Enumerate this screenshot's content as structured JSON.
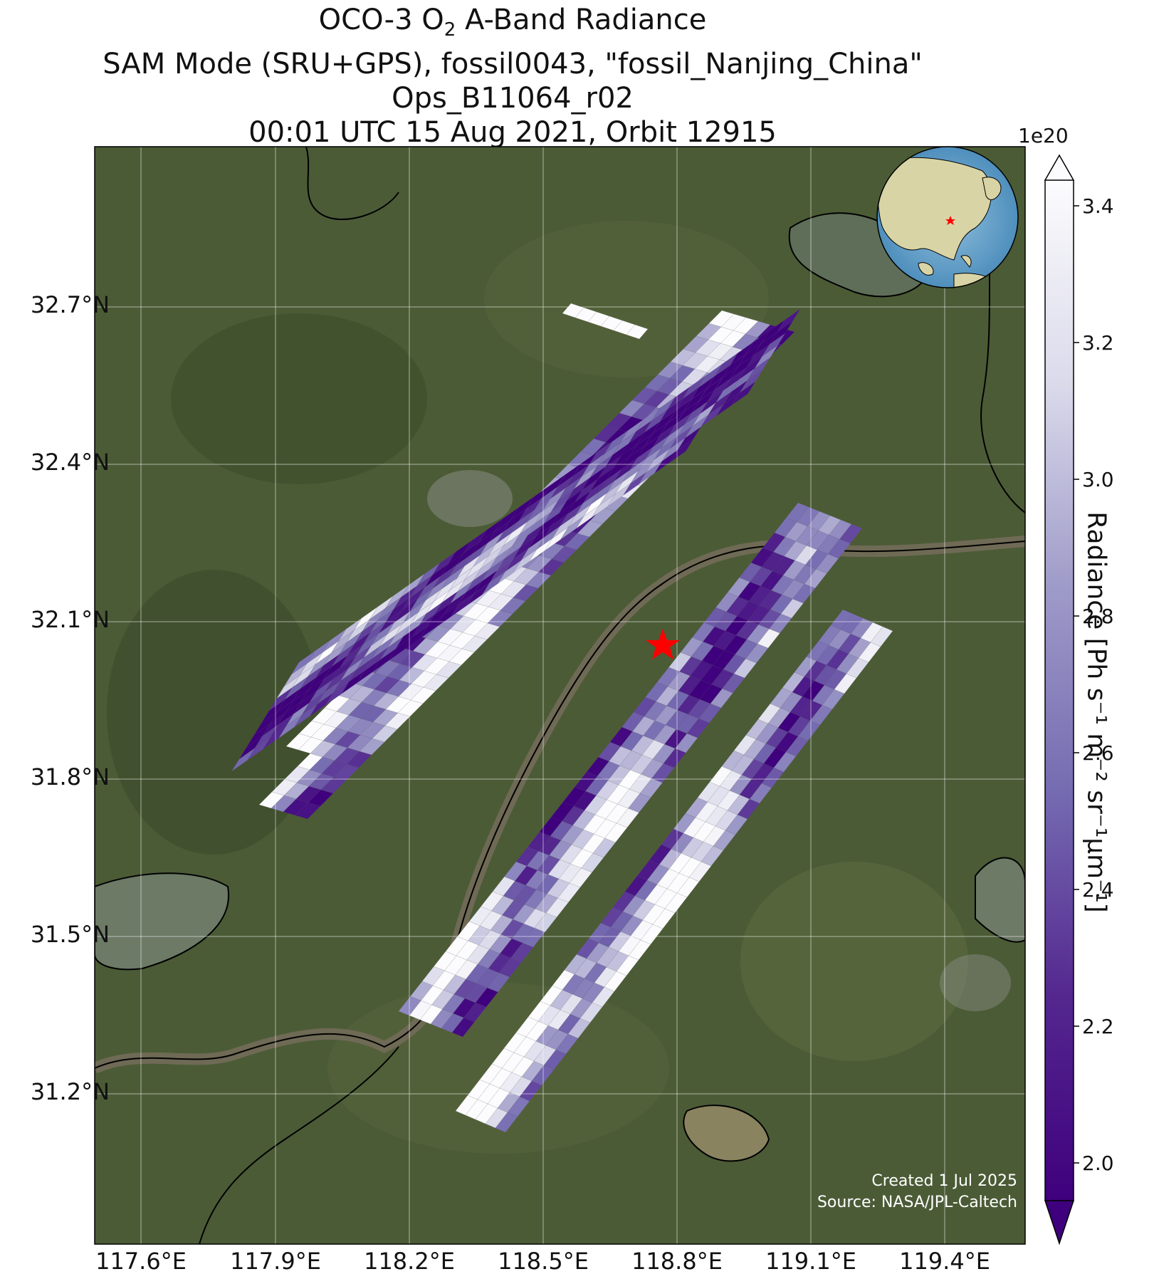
{
  "title": {
    "line1_prefix": "OCO-3 O",
    "line1_sub": "2",
    "line1_suffix": " A-Band Radiance",
    "line2": "SAM Mode (SRU+GPS), fossil0043, \"fossil_Nanjing_China\"",
    "line3": "Ops_B11064_r02",
    "line4": "00:01 UTC 15 Aug 2021, Orbit 12915"
  },
  "map": {
    "lat_ticks": [
      "32.7°N",
      "32.4°N",
      "32.1°N",
      "31.8°N",
      "31.5°N",
      "31.2°N"
    ],
    "lon_ticks": [
      "117.6°E",
      "117.9°E",
      "118.2°E",
      "118.5°E",
      "118.8°E",
      "119.1°E",
      "119.4°E"
    ],
    "target_marker": "red-star",
    "inset": "globe-locator-east-asia",
    "credit_line1": "Created 1 Jul 2025",
    "credit_line2": "Source: NASA/JPL-Caltech"
  },
  "colorbar": {
    "exponent": "1e20",
    "ticks": [
      "3.4",
      "3.2",
      "3.0",
      "2.8",
      "2.6",
      "2.4",
      "2.2",
      "2.0"
    ],
    "label": "Radiance [Ph s⁻¹ m⁻² sr⁻¹μm⁻¹]",
    "colormap": "Purples_r",
    "range": [
      1.95,
      3.45
    ]
  },
  "colors": {
    "land": "#4a5a35",
    "water": "#5f6e58",
    "low": "#3f007d",
    "high": "#fcfbfd",
    "star": "#ff0000"
  }
}
